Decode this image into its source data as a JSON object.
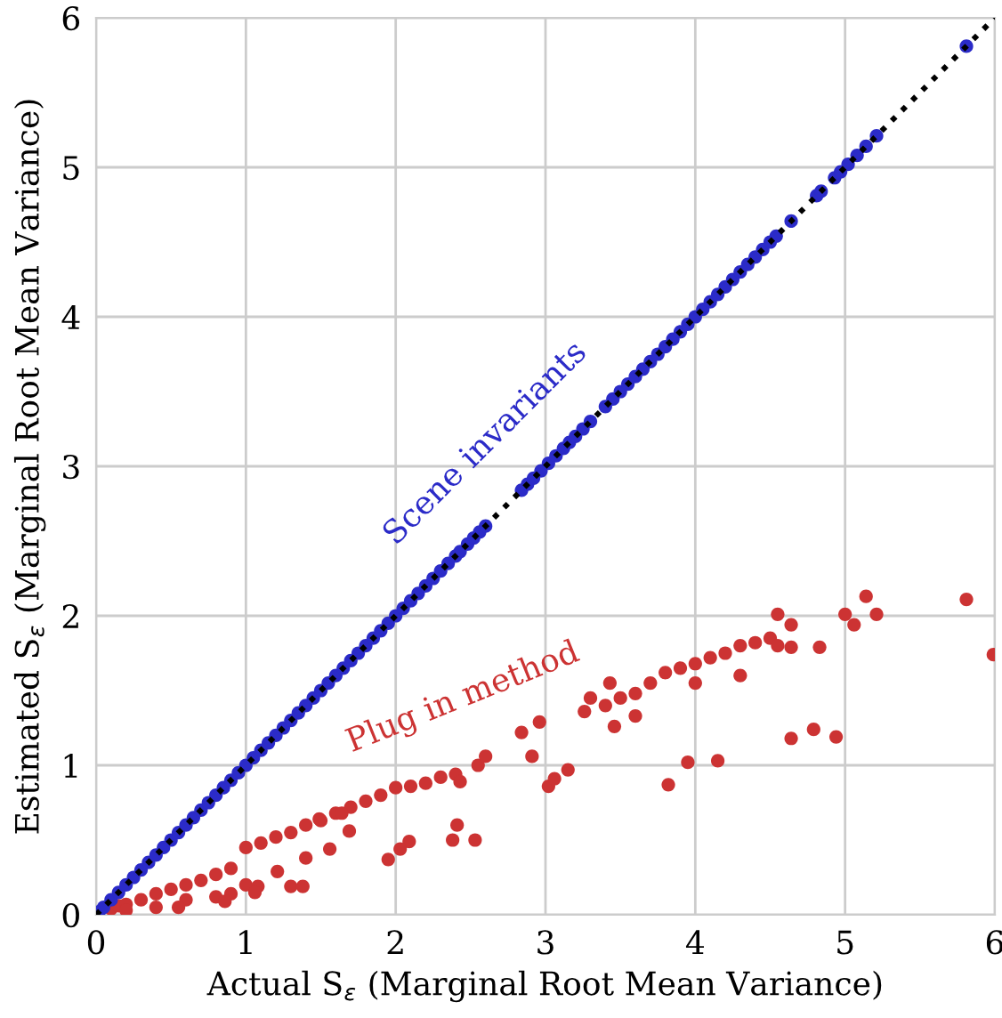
{
  "chart_data": {
    "type": "scatter",
    "xlabel": "Actual S$_{ε}$ (Marginal Root Mean Variance)",
    "ylabel": "Estimated S$_{ε}$ (Marginal Root Mean Variance)",
    "xlim": [
      0,
      6
    ],
    "ylim": [
      0,
      6
    ],
    "xticks": [
      0,
      1,
      2,
      3,
      4,
      5,
      6
    ],
    "yticks": [
      0,
      1,
      2,
      3,
      4,
      5,
      6
    ],
    "grid": true,
    "legend": false,
    "marker": "circle",
    "series": [
      {
        "name": "Scene invariants",
        "color": "#2b2bc8",
        "x": [
          0.02,
          0.05,
          0.1,
          0.15,
          0.2,
          0.25,
          0.3,
          0.35,
          0.4,
          0.45,
          0.5,
          0.55,
          0.6,
          0.65,
          0.7,
          0.75,
          0.8,
          0.85,
          0.9,
          0.95,
          1.0,
          1.05,
          1.1,
          1.15,
          1.2,
          1.25,
          1.3,
          1.35,
          1.4,
          1.45,
          1.5,
          1.55,
          1.6,
          1.65,
          1.7,
          1.75,
          1.8,
          1.85,
          1.9,
          1.95,
          2.0,
          2.05,
          2.1,
          2.15,
          2.2,
          2.25,
          2.3,
          2.35,
          2.4,
          2.43,
          2.48,
          2.52,
          2.56,
          2.6,
          2.84,
          2.88,
          2.92,
          2.97,
          3.02,
          3.07,
          3.12,
          3.16,
          3.2,
          3.25,
          3.3,
          3.4,
          3.45,
          3.5,
          3.55,
          3.6,
          3.65,
          3.7,
          3.75,
          3.8,
          3.85,
          3.9,
          3.95,
          4.0,
          4.05,
          4.1,
          4.15,
          4.2,
          4.25,
          4.3,
          4.35,
          4.4,
          4.45,
          4.5,
          4.54,
          4.64,
          4.81,
          4.84,
          4.93,
          4.97,
          5.02,
          5.08,
          5.14,
          5.21,
          5.81
        ],
        "values": [
          0.02,
          0.05,
          0.1,
          0.15,
          0.2,
          0.25,
          0.3,
          0.35,
          0.4,
          0.45,
          0.5,
          0.55,
          0.6,
          0.65,
          0.7,
          0.75,
          0.8,
          0.85,
          0.9,
          0.95,
          1.0,
          1.05,
          1.1,
          1.15,
          1.2,
          1.25,
          1.3,
          1.35,
          1.4,
          1.45,
          1.5,
          1.55,
          1.6,
          1.65,
          1.7,
          1.75,
          1.8,
          1.85,
          1.9,
          1.95,
          2.0,
          2.05,
          2.1,
          2.15,
          2.2,
          2.25,
          2.3,
          2.35,
          2.4,
          2.43,
          2.48,
          2.52,
          2.56,
          2.6,
          2.84,
          2.88,
          2.92,
          2.97,
          3.02,
          3.07,
          3.12,
          3.16,
          3.2,
          3.25,
          3.3,
          3.4,
          3.45,
          3.5,
          3.55,
          3.6,
          3.65,
          3.7,
          3.75,
          3.8,
          3.85,
          3.9,
          3.95,
          4.0,
          4.05,
          4.1,
          4.15,
          4.2,
          4.25,
          4.3,
          4.35,
          4.4,
          4.45,
          4.5,
          4.54,
          4.64,
          4.81,
          4.84,
          4.93,
          4.97,
          5.02,
          5.08,
          5.14,
          5.21,
          5.81
        ]
      },
      {
        "name": "Plug in method",
        "color": "#cc3333",
        "x": [
          0.1,
          0.15,
          0.2,
          0.3,
          0.4,
          0.5,
          0.6,
          0.7,
          0.8,
          0.9,
          1.0,
          1.1,
          1.2,
          1.3,
          1.4,
          1.5,
          1.6,
          1.7,
          1.8,
          1.9,
          2.0,
          2.1,
          2.2,
          2.3,
          2.4,
          3.3,
          3.4,
          3.5,
          3.6,
          3.7,
          3.8,
          3.9,
          4.0,
          4.1,
          4.2,
          4.3,
          4.4,
          4.5,
          4.55,
          4.3,
          4.0,
          3.6,
          0.2,
          0.4,
          0.6,
          0.8,
          0.9,
          1.0,
          5.14,
          5.81,
          5.0,
          5.06,
          5.21,
          5.99,
          4.55,
          4.64,
          4.64,
          4.83,
          4.64,
          4.79,
          4.94,
          3.95,
          4.15,
          3.82,
          3.46,
          3.43,
          3.26,
          3.02,
          3.06,
          3.15,
          2.84,
          2.96,
          2.91,
          2.53,
          2.38,
          2.41,
          2.09,
          2.03,
          1.95,
          2.43,
          2.55,
          2.6,
          1.4,
          1.56,
          1.69,
          1.64,
          1.49,
          1.21,
          1.3,
          1.38,
          1.08,
          1.06,
          0.86,
          0.55
        ],
        "values": [
          0.04,
          0.06,
          0.07,
          0.1,
          0.14,
          0.17,
          0.2,
          0.23,
          0.27,
          0.31,
          0.45,
          0.48,
          0.52,
          0.55,
          0.6,
          0.63,
          0.68,
          0.72,
          0.76,
          0.8,
          0.85,
          0.86,
          0.88,
          0.92,
          0.94,
          1.45,
          1.4,
          1.45,
          1.48,
          1.55,
          1.62,
          1.65,
          1.68,
          1.72,
          1.75,
          1.8,
          1.82,
          1.85,
          1.8,
          1.6,
          1.55,
          1.33,
          0.03,
          0.05,
          0.1,
          0.12,
          0.14,
          0.2,
          2.13,
          2.11,
          2.01,
          1.94,
          2.01,
          1.74,
          2.01,
          1.94,
          1.79,
          1.79,
          1.18,
          1.24,
          1.19,
          1.02,
          1.03,
          0.87,
          1.26,
          1.55,
          1.36,
          0.86,
          0.91,
          0.97,
          1.22,
          1.29,
          1.06,
          0.5,
          0.5,
          0.6,
          0.49,
          0.44,
          0.37,
          0.89,
          1.0,
          1.06,
          0.38,
          0.44,
          0.56,
          0.68,
          0.64,
          0.29,
          0.19,
          0.19,
          0.19,
          0.15,
          0.09,
          0.05
        ]
      },
      {
        "type": "line",
        "color": "#000000",
        "line_style": "dotted",
        "marker": "none",
        "x": [
          0,
          6
        ],
        "values": [
          0,
          6
        ]
      }
    ]
  }
}
